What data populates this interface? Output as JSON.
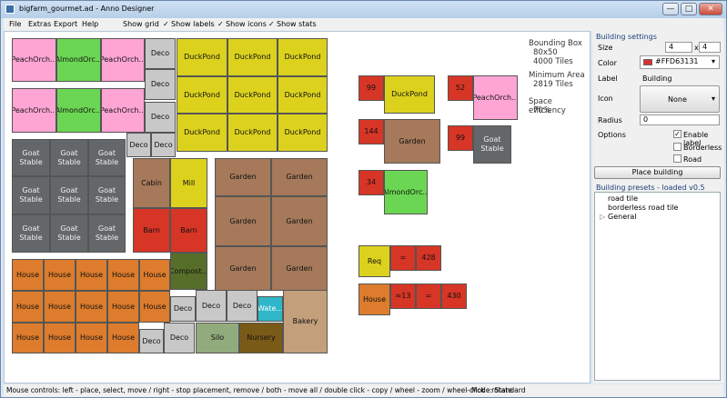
{
  "window": {
    "title": "bigfarm_gourmet.ad - Anno Designer",
    "minimize_glyph": "—",
    "maximize_glyph": "□",
    "close_glyph": "✕"
  },
  "menu": {
    "file": "File",
    "extras": "Extras",
    "export": "Export",
    "help": "Help",
    "show_grid": "Show grid",
    "show_labels": "Show labels",
    "show_icons": "Show icons",
    "show_stats": "Show stats",
    "check_glyph": "✓"
  },
  "stats": {
    "bounding_box_title": "Bounding Box",
    "bounding_box_size": "80x50",
    "bounding_box_tiles": "4000 Tiles",
    "min_area_title": "Minimum Area",
    "min_area_tiles": "2819 Tiles",
    "space_eff_title": "Space efficiency",
    "space_eff_value": "70%"
  },
  "colors": {
    "peach": "#ffa5d4",
    "almond": "#6bd653",
    "deco": "#c8c8c8",
    "duckpond": "#dcd21e",
    "goat": "#646769",
    "house": "#dc7c2c",
    "cabin": "#a5795a",
    "mill": "#dcd21e",
    "barn": "#d73526",
    "garden": "#a5795a",
    "compost": "#576e2a",
    "water": "#2fb6c8",
    "silo": "#91ab7c",
    "nursery": "#7a5a17",
    "bakery": "#c39f7b",
    "red": "#d73526",
    "req": "#dcd21e",
    "selected_color": "#FFD63131"
  },
  "canvas_labels": {
    "peach": "PeachOrch...",
    "almond": "AlmondOrc...",
    "deco": "Deco",
    "duckpond": "DuckPond",
    "goat": "Goat\nStable",
    "house": "House",
    "cabin": "Cabin",
    "mill": "Mill",
    "barn": "Barn",
    "garden": "Garden",
    "compost": "Compost...",
    "water": "Wate...",
    "silo": "Silo",
    "nursery": "Nursery",
    "bakery": "Bakery"
  },
  "stats_panel": {
    "n99a": "99",
    "duckpond": "DuckPond",
    "n52": "52",
    "peach": "PeachOrch...",
    "n144": "144",
    "garden": "Garden",
    "n99b": "99",
    "goat": "Goat\nStable",
    "n34": "34",
    "almond": "AlmondOrc...",
    "req": "Req",
    "eq": "=",
    "n428": "428",
    "house": "House",
    "n13": "≈13",
    "eq2": "=",
    "n430": "430"
  },
  "settings": {
    "group_title": "Building settings",
    "size_label": "Size",
    "size_w": "4",
    "size_x": "x",
    "size_h": "4",
    "color_label": "Color",
    "color_value": "#FFD63131",
    "dropdown_glyph": "▾",
    "label_label": "Label",
    "label_value": "Building",
    "icon_label": "Icon",
    "icon_value": "None",
    "radius_label": "Radius",
    "radius_value": "0",
    "options_label": "Options",
    "enable_label": "Enable label",
    "borderless": "Borderless",
    "road": "Road",
    "check_glyph": "✓",
    "place_button": "Place building"
  },
  "presets": {
    "title": "Building presets - loaded v0.5",
    "items": [
      "road tile",
      "borderless road tile"
    ],
    "general": "General",
    "expander_glyph": "▷"
  },
  "status": {
    "text": "Mouse controls: left - place, select, move / right - stop placement, remove / both - move all / double click - copy / wheel - zoom / wheel-click - rotate.",
    "mode": "Mode: Standard"
  }
}
